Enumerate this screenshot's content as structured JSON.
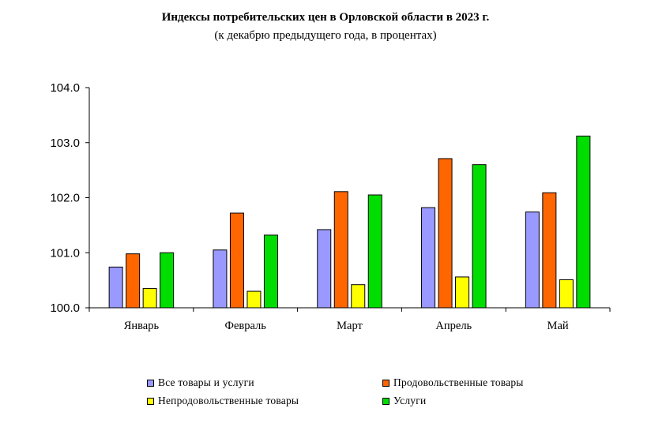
{
  "chart_data": {
    "type": "bar",
    "title": "Индексы потребительских цен в Орловской области в 2023 г.",
    "subtitle": "(к декабрю предыдущего года, в процентах)",
    "categories": [
      "Январь",
      "Февраль",
      "Март",
      "Апрель",
      "Май"
    ],
    "series": [
      {
        "name": "Все товары и  услуги",
        "color": "#9999ff",
        "values": [
          100.74,
          101.05,
          101.42,
          101.82,
          101.74
        ]
      },
      {
        "name": "Продовольственные  товары",
        "color": "#ff6600",
        "values": [
          100.98,
          101.72,
          102.11,
          102.71,
          102.09
        ]
      },
      {
        "name": "Непродовольственные  товары",
        "color": "#ffff00",
        "values": [
          100.35,
          100.3,
          100.42,
          100.56,
          100.51
        ]
      },
      {
        "name": "Услуги",
        "color": "#00dd00",
        "values": [
          101.0,
          101.32,
          102.05,
          102.6,
          103.12
        ]
      }
    ],
    "ylim": [
      100.0,
      104.0
    ],
    "yticks": [
      "100.0",
      "101.0",
      "102.0",
      "103.0",
      "104.0"
    ],
    "xlabel": "",
    "ylabel": "",
    "grid": false,
    "legend": "bottom"
  }
}
